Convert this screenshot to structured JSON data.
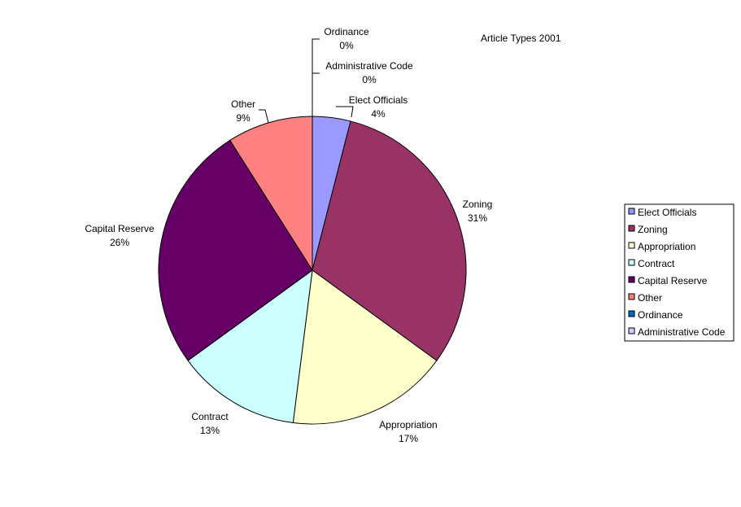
{
  "chart_data": {
    "type": "pie",
    "title": "Article Types 2001",
    "legend_position": "right",
    "slices": [
      {
        "name": "Elect Officials",
        "value": 4,
        "label": "4%",
        "color": "#9999FF"
      },
      {
        "name": "Zoning",
        "value": 31,
        "label": "31%",
        "color": "#993366"
      },
      {
        "name": "Appropriation",
        "value": 17,
        "label": "17%",
        "color": "#FFFFCC"
      },
      {
        "name": "Contract",
        "value": 13,
        "label": "13%",
        "color": "#CCFFFF"
      },
      {
        "name": "Capital Reserve",
        "value": 26,
        "label": "26%",
        "color": "#660066"
      },
      {
        "name": "Other",
        "value": 9,
        "label": "9%",
        "color": "#FF8080"
      },
      {
        "name": "Ordinance",
        "value": 0,
        "label": "0%",
        "color": "#0066CC"
      },
      {
        "name": "Administrative Code",
        "value": 0,
        "label": "0%",
        "color": "#CCCCFF"
      }
    ]
  }
}
